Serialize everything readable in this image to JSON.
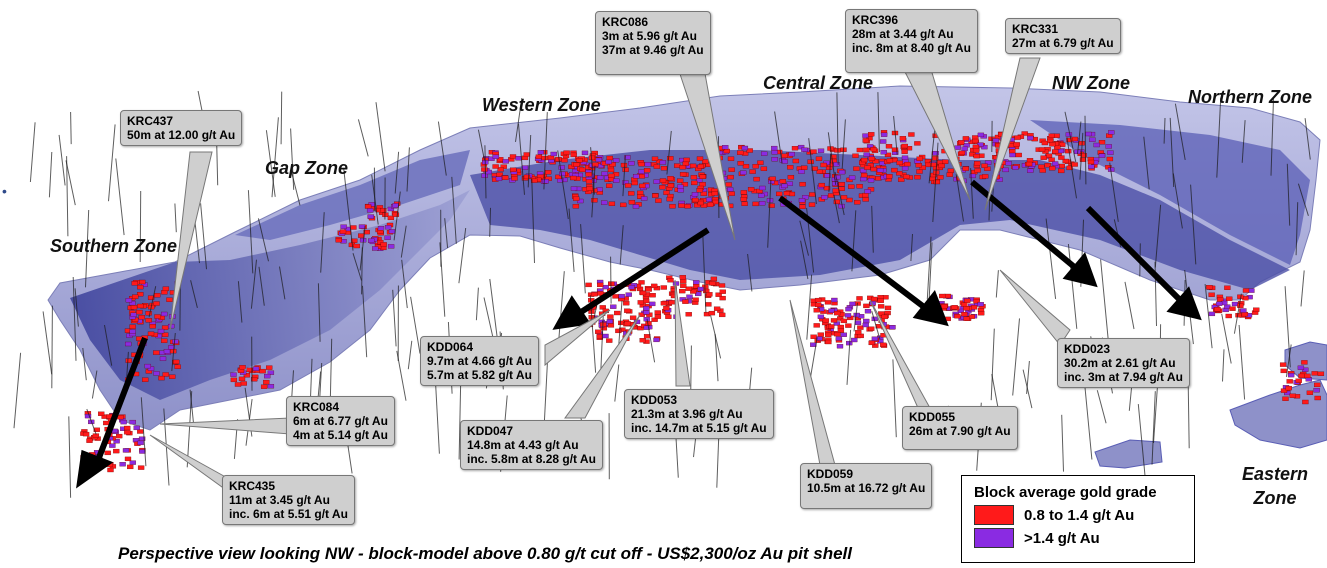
{
  "zones": {
    "southern": "Southern Zone",
    "gap": "Gap Zone",
    "western": "Western Zone",
    "central": "Central Zone",
    "nw": "NW Zone",
    "northern": "Northern Zone",
    "eastern_line1": "Eastern",
    "eastern_line2": "Zone"
  },
  "callouts": {
    "krc437": {
      "id": "KRC437",
      "lines": [
        "50m at 12.00 g/t Au"
      ]
    },
    "krc086": {
      "id": "KRC086",
      "lines": [
        "3m at 5.96 g/t Au",
        "37m at 9.46 g/t Au"
      ]
    },
    "krc396": {
      "id": "KRC396",
      "lines": [
        "28m at 3.44 g/t Au",
        "inc. 8m at 8.40 g/t Au"
      ]
    },
    "krc331": {
      "id": "KRC331",
      "lines": [
        "27m at 6.79 g/t Au"
      ]
    },
    "kdd064": {
      "id": "KDD064",
      "lines": [
        "9.7m at 4.66 g/t Au",
        "5.7m at 5.82 g/t Au"
      ]
    },
    "kdd023": {
      "id": "KDD023",
      "lines": [
        "30.2m at 2.61 g/t Au",
        "inc. 3m at 7.94 g/t Au"
      ]
    },
    "krc084": {
      "id": "KRC084",
      "lines": [
        "6m at 6.77 g/t Au",
        "4m at 5.14 g/t Au"
      ]
    },
    "kdd053": {
      "id": "KDD053",
      "lines": [
        "21.3m at 3.96 g/t Au",
        "inc. 14.7m at 5.15 g/t Au"
      ]
    },
    "kdd047": {
      "id": "KDD047",
      "lines": [
        "14.8m at 4.43 g/t Au",
        "inc. 5.8m at 8.28 g/t Au"
      ]
    },
    "kdd055": {
      "id": "KDD055",
      "lines": [
        "26m at 7.90 g/t Au"
      ]
    },
    "kdd059": {
      "id": "KDD059",
      "lines": [
        "10.5m at 16.72 g/t Au"
      ]
    },
    "krc435": {
      "id": "KRC435",
      "lines": [
        "11m at 3.45 g/t Au",
        "inc. 6m at 5.51 g/t Au"
      ]
    }
  },
  "legend": {
    "title": "Block average gold grade",
    "items": [
      {
        "label": "0.8 to 1.4 g/t Au",
        "color": "#ff1a1a"
      },
      {
        "label": ">1.4 g/t Au",
        "color": "#8a2be2"
      }
    ]
  },
  "caption": "Perspective view looking NW - block-model above 0.80 g/t cut off - US$2,300/oz Au pit shell",
  "colors": {
    "pit_shell": "#a9abd8",
    "pit_shell_dark": "#2a2f8a",
    "low_grade": "#ff1a1a",
    "high_grade": "#8a2be2",
    "drillhole": "#1a1a1a",
    "callout_bg": "#cfcfcf"
  }
}
